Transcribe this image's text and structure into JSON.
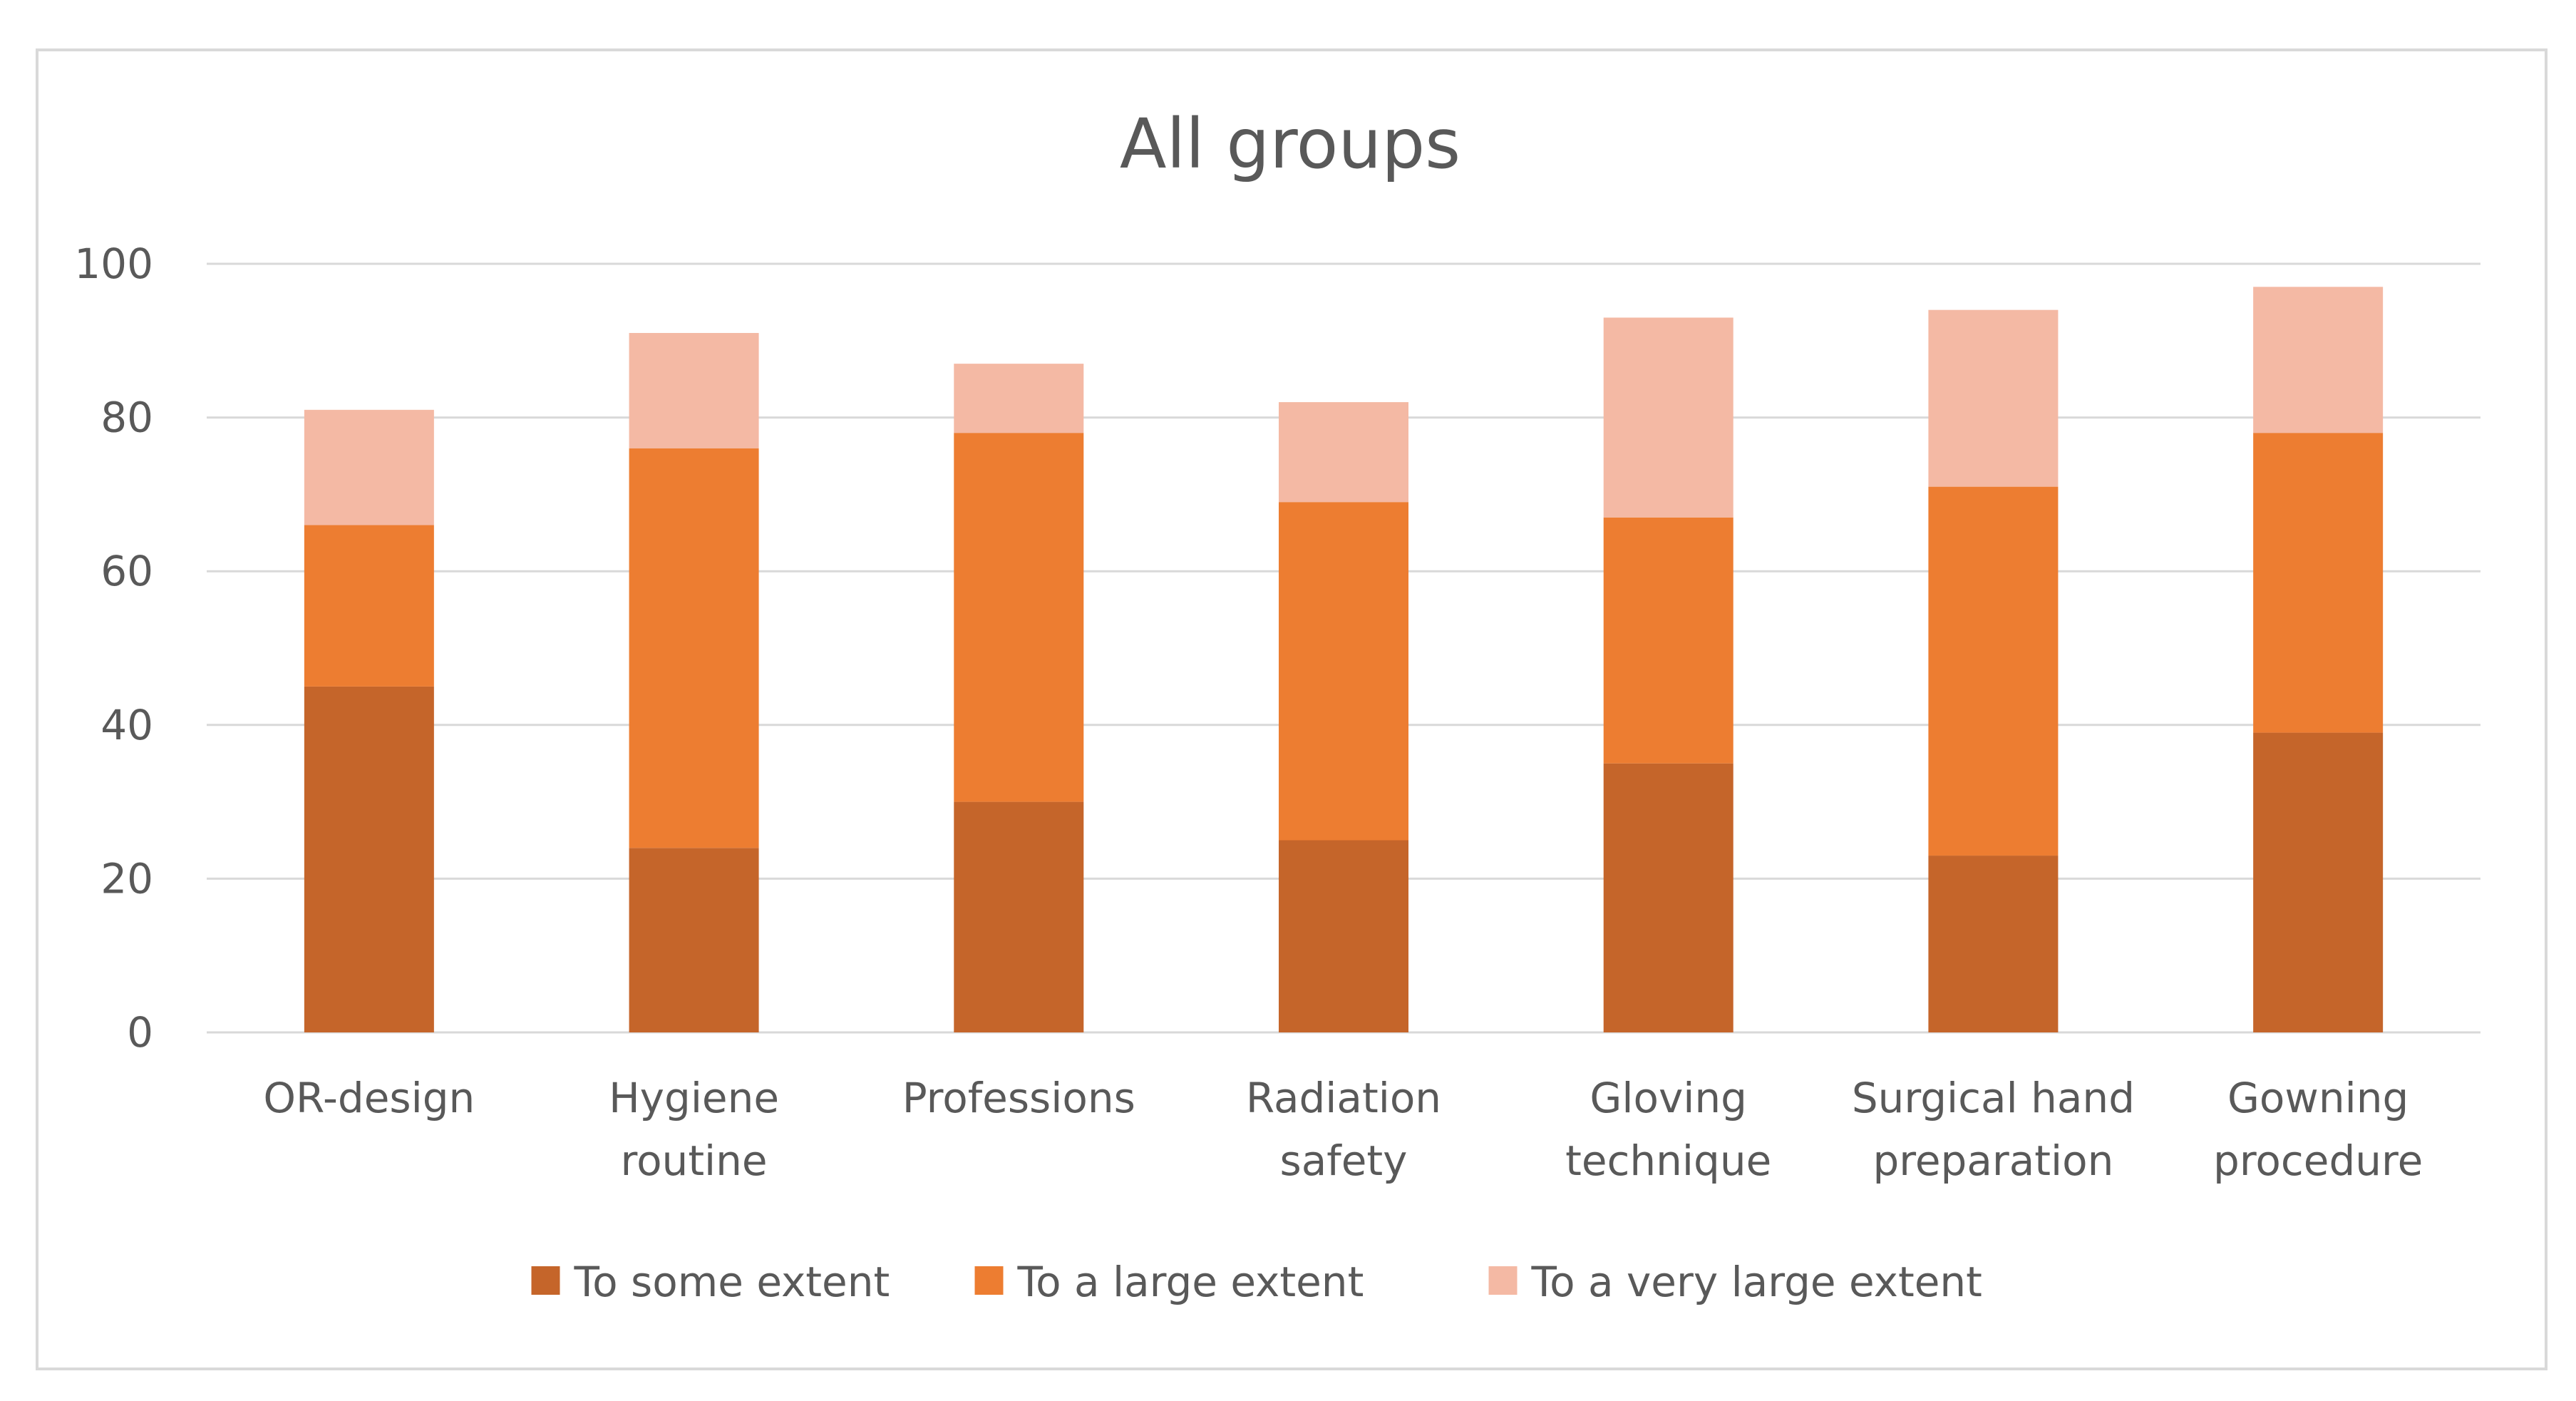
{
  "chart_data": {
    "type": "bar",
    "stacked": true,
    "title": "All groups",
    "xlabel": "",
    "ylabel": "",
    "ylim": [
      0,
      100
    ],
    "yticks": [
      0,
      20,
      40,
      60,
      80,
      100
    ],
    "grid": true,
    "legend_position": "bottom",
    "categories": [
      [
        "OR-design"
      ],
      [
        "Hygiene",
        "routine"
      ],
      [
        "Professions"
      ],
      [
        "Radiation",
        "safety"
      ],
      [
        "Gloving",
        "technique"
      ],
      [
        "Surgical hand",
        "preparation"
      ],
      [
        "Gowning",
        "procedure"
      ]
    ],
    "series": [
      {
        "name": "To some extent",
        "color": "#C5652A",
        "values": [
          45,
          24,
          30,
          25,
          35,
          23,
          39
        ]
      },
      {
        "name": "To a large extent",
        "color": "#ED7D31",
        "values": [
          21,
          52,
          48,
          44,
          32,
          48,
          39
        ]
      },
      {
        "name": "To a very large extent",
        "color": "#F4B9A4",
        "values": [
          15,
          15,
          9,
          13,
          26,
          23,
          19
        ]
      }
    ]
  }
}
